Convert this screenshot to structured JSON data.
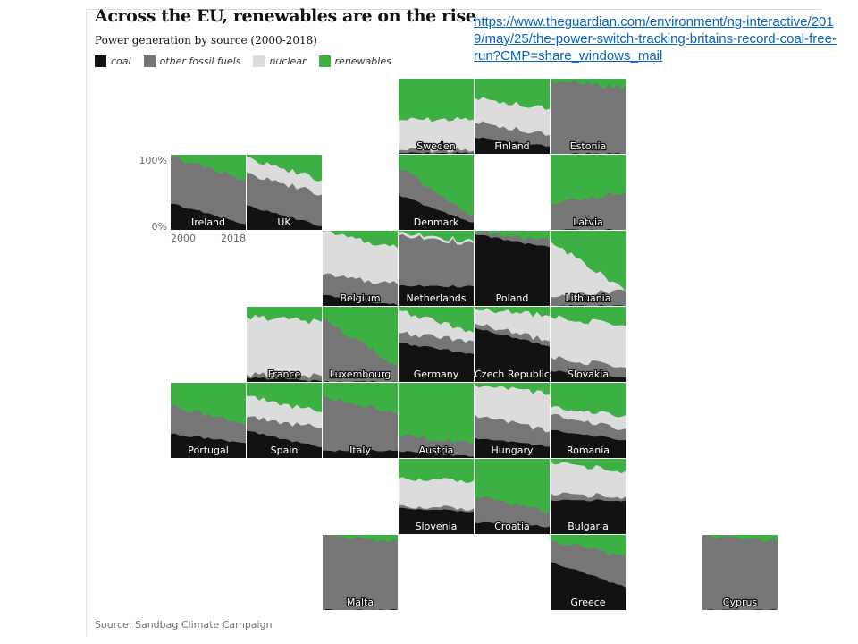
{
  "title": "Across the EU, renewables are on the rise",
  "subtitle": "Power generation by source (2000-2018)",
  "link": "https://www.theguardian.com/environment/ng-interactive/2019/may/25/the-power-switch-tracking-britains-record-coal-free-run?CMP=share_windows_mail",
  "source": "Source: Sandbag Climate Campaign",
  "legend": [
    {
      "label": "coal",
      "color": "#121212"
    },
    {
      "label": "other fossil fuels",
      "color": "#767676"
    },
    {
      "label": "nuclear",
      "color": "#dcdcdc"
    },
    {
      "label": "renewables",
      "color": "#3cb043"
    }
  ],
  "axis": {
    "y_top": "100%",
    "y_bottom": "0%",
    "x_start": "2000",
    "x_end": "2018"
  },
  "chart_data": {
    "type": "area",
    "layout": "tile-grid map",
    "x": [
      2000,
      2018
    ],
    "ylim": [
      0,
      100
    ],
    "series_order": [
      "coal",
      "other fossil fuels",
      "nuclear",
      "renewables"
    ],
    "countries": [
      {
        "name": "Sweden",
        "row": 0,
        "col": 3,
        "coal": [
          1,
          1
        ],
        "fossil": [
          4,
          3
        ],
        "nuclear": [
          40,
          42
        ],
        "renew": [
          55,
          54
        ]
      },
      {
        "name": "Finland",
        "row": 0,
        "col": 4,
        "coal": [
          22,
          10
        ],
        "fossil": [
          20,
          15
        ],
        "nuclear": [
          32,
          35
        ],
        "renew": [
          26,
          40
        ]
      },
      {
        "name": "Estonia",
        "row": 0,
        "col": 5,
        "coal": [
          0,
          0
        ],
        "fossil": [
          98,
          88
        ],
        "nuclear": [
          0,
          0
        ],
        "renew": [
          2,
          12
        ]
      },
      {
        "name": "Ireland",
        "row": 1,
        "col": 0,
        "coal": [
          35,
          8
        ],
        "fossil": [
          62,
          59
        ],
        "nuclear": [
          0,
          0
        ],
        "renew": [
          3,
          33
        ]
      },
      {
        "name": "UK",
        "row": 1,
        "col": 1,
        "coal": [
          33,
          5
        ],
        "fossil": [
          43,
          42
        ],
        "nuclear": [
          21,
          19
        ],
        "renew": [
          3,
          34
        ]
      },
      {
        "name": "Denmark",
        "row": 1,
        "col": 3,
        "coal": [
          46,
          10
        ],
        "fossil": [
          37,
          9
        ],
        "nuclear": [
          0,
          0
        ],
        "renew": [
          17,
          81
        ]
      },
      {
        "name": "Latvia",
        "row": 1,
        "col": 5,
        "coal": [
          0,
          0
        ],
        "fossil": [
          35,
          50
        ],
        "nuclear": [
          0,
          0
        ],
        "renew": [
          65,
          50
        ]
      },
      {
        "name": "Belgium",
        "row": 2,
        "col": 2,
        "coal": [
          14,
          1
        ],
        "fossil": [
          27,
          28
        ],
        "nuclear": [
          58,
          48
        ],
        "renew": [
          1,
          23
        ]
      },
      {
        "name": "Netherlands",
        "row": 2,
        "col": 3,
        "coal": [
          27,
          26
        ],
        "fossil": [
          67,
          57
        ],
        "nuclear": [
          4,
          3
        ],
        "renew": [
          2,
          14
        ]
      },
      {
        "name": "Poland",
        "row": 2,
        "col": 4,
        "coal": [
          95,
          78
        ],
        "fossil": [
          3,
          9
        ],
        "nuclear": [
          0,
          0
        ],
        "renew": [
          2,
          13
        ]
      },
      {
        "name": "Lithuania",
        "row": 2,
        "col": 5,
        "coal": [
          0,
          0
        ],
        "fossil": [
          12,
          20
        ],
        "nuclear": [
          74,
          0
        ],
        "renew": [
          14,
          80
        ]
      },
      {
        "name": "France",
        "row": 3,
        "col": 1,
        "coal": [
          6,
          1
        ],
        "fossil": [
          4,
          7
        ],
        "nuclear": [
          77,
          72
        ],
        "renew": [
          13,
          20
        ]
      },
      {
        "name": "Luxembourg",
        "row": 3,
        "col": 2,
        "coal": [
          0,
          0
        ],
        "fossil": [
          85,
          20
        ],
        "nuclear": [
          0,
          0
        ],
        "renew": [
          15,
          80
        ]
      },
      {
        "name": "Germany",
        "row": 3,
        "col": 3,
        "coal": [
          52,
          37
        ],
        "fossil": [
          13,
          17
        ],
        "nuclear": [
          30,
          12
        ],
        "renew": [
          5,
          34
        ]
      },
      {
        "name": "Czech Republic",
        "row": 3,
        "col": 4,
        "coal": [
          72,
          47
        ],
        "fossil": [
          6,
          7
        ],
        "nuclear": [
          19,
          34
        ],
        "renew": [
          3,
          12
        ]
      },
      {
        "name": "Slovakia",
        "row": 3,
        "col": 5,
        "coal": [
          15,
          6
        ],
        "fossil": [
          18,
          13
        ],
        "nuclear": [
          54,
          56
        ],
        "renew": [
          13,
          25
        ]
      },
      {
        "name": "Portugal",
        "row": 4,
        "col": 0,
        "coal": [
          32,
          20
        ],
        "fossil": [
          37,
          25
        ],
        "nuclear": [
          0,
          0
        ],
        "renew": [
          31,
          55
        ]
      },
      {
        "name": "Spain",
        "row": 4,
        "col": 1,
        "coal": [
          36,
          14
        ],
        "fossil": [
          18,
          26
        ],
        "nuclear": [
          28,
          21
        ],
        "renew": [
          18,
          39
        ]
      },
      {
        "name": "Italy",
        "row": 4,
        "col": 2,
        "coal": [
          10,
          10
        ],
        "fossil": [
          72,
          50
        ],
        "nuclear": [
          0,
          0
        ],
        "renew": [
          18,
          40
        ]
      },
      {
        "name": "Austria",
        "row": 4,
        "col": 3,
        "coal": [
          9,
          2
        ],
        "fossil": [
          21,
          18
        ],
        "nuclear": [
          0,
          0
        ],
        "renew": [
          70,
          80
        ]
      },
      {
        "name": "Hungary",
        "row": 4,
        "col": 4,
        "coal": [
          27,
          15
        ],
        "fossil": [
          31,
          20
        ],
        "nuclear": [
          40,
          50
        ],
        "renew": [
          2,
          15
        ]
      },
      {
        "name": "Romania",
        "row": 4,
        "col": 5,
        "coal": [
          37,
          24
        ],
        "fossil": [
          20,
          15
        ],
        "nuclear": [
          10,
          18
        ],
        "renew": [
          33,
          43
        ]
      },
      {
        "name": "Slovenia",
        "row": 5,
        "col": 3,
        "coal": [
          35,
          30
        ],
        "fossil": [
          3,
          4
        ],
        "nuclear": [
          37,
          37
        ],
        "renew": [
          25,
          29
        ]
      },
      {
        "name": "Croatia",
        "row": 5,
        "col": 4,
        "coal": [
          15,
          10
        ],
        "fossil": [
          34,
          20
        ],
        "nuclear": [
          0,
          0
        ],
        "renew": [
          51,
          70
        ]
      },
      {
        "name": "Bulgaria",
        "row": 5,
        "col": 5,
        "coal": [
          45,
          45
        ],
        "fossil": [
          9,
          5
        ],
        "nuclear": [
          42,
          34
        ],
        "renew": [
          4,
          16
        ]
      },
      {
        "name": "Malta",
        "row": 6,
        "col": 2,
        "coal": [
          0,
          0
        ],
        "fossil": [
          100,
          90
        ],
        "nuclear": [
          0,
          0
        ],
        "renew": [
          0,
          10
        ]
      },
      {
        "name": "Greece",
        "row": 6,
        "col": 5,
        "coal": [
          64,
          30
        ],
        "fossil": [
          28,
          40
        ],
        "nuclear": [
          0,
          0
        ],
        "renew": [
          8,
          30
        ]
      },
      {
        "name": "Cyprus",
        "row": 6,
        "col": 7,
        "coal": [
          0,
          0
        ],
        "fossil": [
          100,
          91
        ],
        "nuclear": [
          0,
          0
        ],
        "renew": [
          0,
          9
        ]
      }
    ]
  }
}
